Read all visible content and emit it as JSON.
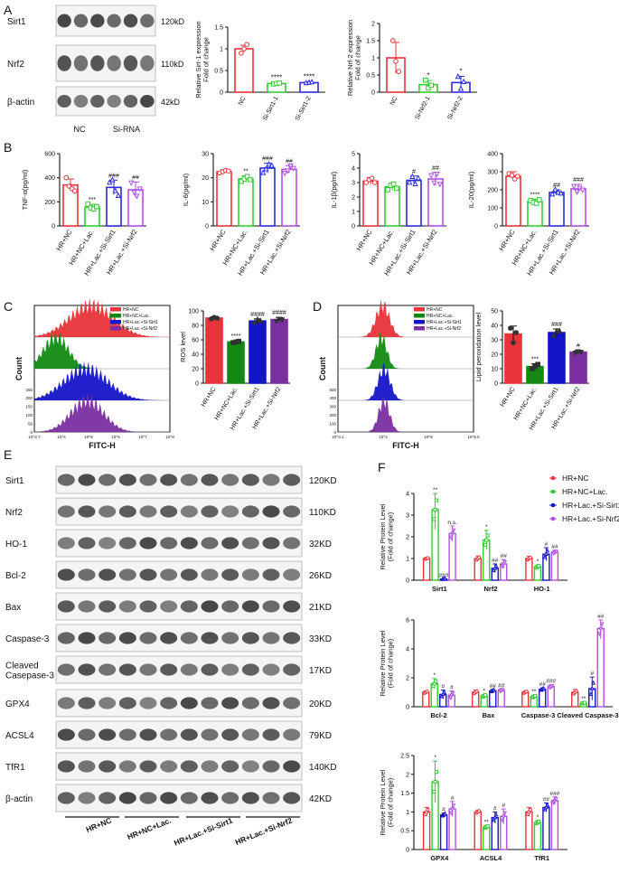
{
  "panel_letters": [
    "A",
    "B",
    "C",
    "D",
    "E",
    "F"
  ],
  "colors": {
    "red": "#e8333a",
    "green": "#33cc33",
    "blue": "#2b2bd9",
    "purple": "#b04fe0",
    "darkgreen": "#128a12",
    "darkblue": "#1515c8",
    "darkpurple": "#7a2ea0"
  },
  "panel_a": {
    "blots": [
      {
        "label": "Sirt1",
        "kd": "120kD"
      },
      {
        "label": "Nrf2",
        "kd": "110kD"
      },
      {
        "label": "β-actin",
        "kd": "42kD"
      }
    ],
    "groups": [
      "NC",
      "Si-RNA"
    ]
  },
  "panel_e": {
    "blots": [
      {
        "label": "Sirt1",
        "kd": "120KD"
      },
      {
        "label": "Nrf2",
        "kd": "110KD"
      },
      {
        "label": "HO-1",
        "kd": "32KD"
      },
      {
        "label": "Bcl-2",
        "kd": "26KD"
      },
      {
        "label": "Bax",
        "kd": "21KD"
      },
      {
        "label": "Caspase-3",
        "kd": "33KD"
      },
      {
        "label": "Cleaved\nCasepase-3",
        "kd": "17KD"
      },
      {
        "label": "GPX4",
        "kd": "20KD"
      },
      {
        "label": "ACSL4",
        "kd": "79KD"
      },
      {
        "label": "TfR1",
        "kd": "140KD"
      },
      {
        "label": "β-actin",
        "kd": "42KD"
      }
    ],
    "groups": [
      "HR+NC",
      "HR+NC+Lac.",
      "HR+Lac.+Si-Sirt1",
      "HR+Lac.+Si-Nrf2"
    ]
  },
  "flow_c": {
    "legend": [
      "HR+NC",
      "HR+NC+Lac.",
      "HR+Lac.+Si-Sirt1",
      "HR+Lac.+Si-Nrf2"
    ],
    "xlabel": "FITC-H",
    "ylabel": "Count",
    "xticks": [
      "10^2.7",
      "10^4",
      "10^5",
      "10^6",
      "10^7",
      "10^8"
    ],
    "yticks": [
      "0",
      "50",
      "100",
      "150",
      "200",
      "250"
    ]
  },
  "flow_d": {
    "legend": [
      "HR+NC",
      "HR+NC+Lac.",
      "HR+Lac.+Si-Sirt1",
      "HR+Lac.+Si-Nrf2"
    ],
    "xlabel": "FITC-H",
    "ylabel": "Count",
    "xticks": [
      "10^3.1",
      "10^4",
      "10^5",
      "10^5.6"
    ],
    "yticks": [
      "0",
      "100",
      "200",
      "300",
      "400",
      "500"
    ]
  },
  "chart_data": [
    {
      "id": "A1",
      "type": "bar",
      "title": "",
      "ylabel": "Relative Sirt-1 expression\nFold of change",
      "ylim": [
        0,
        1.5
      ],
      "yticks": [
        0.0,
        0.5,
        1.0,
        1.5
      ],
      "categories": [
        "NC",
        "Si-Sirt1-1",
        "Si-Sirt1-2"
      ],
      "values": [
        1.0,
        0.2,
        0.22
      ],
      "errors": [
        0.08,
        0.02,
        0.02
      ],
      "points": [
        [
          0.9,
          1.0,
          1.1
        ],
        [
          0.19,
          0.2,
          0.21
        ],
        [
          0.21,
          0.22,
          0.23
        ]
      ],
      "colors": [
        "red",
        "green",
        "blue"
      ],
      "markers": [
        "circle",
        "square",
        "triangle"
      ],
      "sig": [
        "",
        "****",
        "****"
      ]
    },
    {
      "id": "A2",
      "type": "bar",
      "title": "",
      "ylabel": "Relative Nrf-2 expression\nFold of change",
      "ylim": [
        0,
        2.0
      ],
      "yticks": [
        0.0,
        0.5,
        1.0,
        1.5,
        2.0
      ],
      "categories": [
        "NC",
        "Si-Nrf2-1",
        "Si-Nrf2-2"
      ],
      "values": [
        1.0,
        0.22,
        0.28
      ],
      "errors": [
        0.45,
        0.12,
        0.18
      ],
      "points": [
        [
          1.5,
          0.9,
          0.6
        ],
        [
          0.35,
          0.12,
          0.2
        ],
        [
          0.45,
          0.1,
          0.3
        ]
      ],
      "colors": [
        "red",
        "green",
        "blue"
      ],
      "markers": [
        "circle",
        "square",
        "triangle"
      ],
      "sig": [
        "",
        "*",
        "*"
      ]
    },
    {
      "id": "B1",
      "type": "bar",
      "ylabel": "TNF-α(pg/ml)",
      "ylim": [
        0,
        600
      ],
      "yticks": [
        0,
        200,
        400,
        600
      ],
      "categories": [
        "HR+NC",
        "HR+NC+Lac.",
        "HR+Lac.+Si-Sirt1",
        "HR+Lac.+Si-Nrf2"
      ],
      "values": [
        340,
        155,
        320,
        300
      ],
      "errors": [
        50,
        25,
        60,
        65
      ],
      "points": [
        [
          400,
          330,
          310,
          290
        ],
        [
          180,
          150,
          140,
          160
        ],
        [
          360,
          380,
          290,
          250
        ],
        [
          360,
          280,
          250,
          310
        ]
      ],
      "colors": [
        "red",
        "green",
        "blue",
        "purple"
      ],
      "markers": [
        "circle",
        "square",
        "triangle",
        "invtriangle"
      ],
      "sig": [
        "",
        "***",
        "###",
        "##"
      ]
    },
    {
      "id": "B2",
      "type": "bar",
      "ylabel": "IL-6(pg/ml)",
      "ylim": [
        0,
        30
      ],
      "yticks": [
        0,
        10,
        20,
        30
      ],
      "categories": [
        "HR+NC",
        "HR+NC+Lac.",
        "HR+Lac.+Si-Sirt1",
        "HR+Lac.+Si-Nrf2"
      ],
      "values": [
        22.5,
        19.5,
        24,
        23.5
      ],
      "errors": [
        0.8,
        1.3,
        2.0,
        1.5
      ],
      "points": [
        [
          22,
          22.5,
          23,
          22.8
        ],
        [
          18.5,
          19.5,
          20.5,
          19.2
        ],
        [
          22,
          23.5,
          25.5,
          25
        ],
        [
          22,
          23,
          25,
          24
        ]
      ],
      "colors": [
        "red",
        "green",
        "blue",
        "purple"
      ],
      "markers": [
        "circle",
        "square",
        "triangle",
        "invtriangle"
      ],
      "sig": [
        "",
        "**",
        "###",
        "##"
      ]
    },
    {
      "id": "B3",
      "type": "bar",
      "ylabel": "IL-1β(pg/ml)",
      "ylim": [
        0,
        5
      ],
      "yticks": [
        0,
        1,
        2,
        3,
        4,
        5
      ],
      "categories": [
        "HR+NC",
        "HR+NC+Lac.",
        "HR+Lac.+Si-Sirt1",
        "HR+Lac.+Si-Nrf2"
      ],
      "values": [
        3.1,
        2.7,
        3.15,
        3.25
      ],
      "errors": [
        0.25,
        0.25,
        0.3,
        0.45
      ],
      "points": [
        [
          3.0,
          3.2,
          3.3,
          3.0
        ],
        [
          2.5,
          2.8,
          2.9,
          2.6
        ],
        [
          3.0,
          3.4,
          2.9,
          3.3
        ],
        [
          3.5,
          3.0,
          3.6,
          2.9
        ]
      ],
      "colors": [
        "red",
        "green",
        "blue",
        "purple"
      ],
      "markers": [
        "circle",
        "square",
        "triangle",
        "invtriangle"
      ],
      "sig": [
        "",
        "",
        "#",
        "##"
      ]
    },
    {
      "id": "B4",
      "type": "bar",
      "ylabel": "IL-20(pg/ml)",
      "ylim": [
        0,
        400
      ],
      "yticks": [
        0,
        100,
        200,
        300,
        400
      ],
      "categories": [
        "HR+NC",
        "HR+NC+Lac.",
        "HR+Lac.+Si-Sirt1",
        "HR+Lac.+Si-Nrf2"
      ],
      "values": [
        275,
        135,
        185,
        205
      ],
      "errors": [
        25,
        12,
        15,
        25
      ],
      "points": [
        [
          290,
          280,
          260,
          275
        ],
        [
          140,
          130,
          125,
          145
        ],
        [
          175,
          200,
          185,
          180
        ],
        [
          220,
          190,
          210,
          200
        ]
      ],
      "colors": [
        "red",
        "green",
        "blue",
        "purple"
      ],
      "markers": [
        "circle",
        "square",
        "triangle",
        "invtriangle"
      ],
      "sig": [
        "",
        "****",
        "##",
        "###"
      ]
    },
    {
      "id": "C",
      "type": "bar",
      "ylabel": "ROS level",
      "ylim": [
        0,
        100
      ],
      "yticks": [
        0,
        20,
        40,
        60,
        80,
        100
      ],
      "categories": [
        "HR+NC",
        "HR+NC+Lac.",
        "HR+Lac.+Si-Sirt1",
        "HR+Lac.+Si-Nrf2"
      ],
      "values": [
        90,
        57,
        86,
        88
      ],
      "errors": [
        2,
        1.5,
        3,
        3
      ],
      "points": [
        [
          89,
          91,
          90
        ],
        [
          56,
          57,
          58
        ],
        [
          84,
          88,
          86
        ],
        [
          86,
          89,
          88
        ]
      ],
      "colors": [
        "red",
        "darkgreen",
        "darkblue",
        "darkpurple"
      ],
      "filled": true,
      "markers": [
        "circle",
        "square",
        "triangle",
        "invtriangle"
      ],
      "sig": [
        "",
        "****",
        "####",
        "####"
      ]
    },
    {
      "id": "D",
      "type": "bar",
      "ylabel": "Lipid peroxidation level",
      "ylim": [
        0,
        50
      ],
      "yticks": [
        0,
        10,
        20,
        30,
        40,
        50
      ],
      "categories": [
        "HR+NC",
        "HR+NC+Lac.",
        "HR+Lac.+Si-Sirt1",
        "HR+Lac.+Si-Nrf2"
      ],
      "values": [
        34,
        11.5,
        35,
        21.5
      ],
      "errors": [
        5.5,
        2,
        2.5,
        1.2
      ],
      "points": [
        [
          38,
          28,
          35
        ],
        [
          10,
          11.5,
          13
        ],
        [
          33,
          36,
          36
        ],
        [
          21,
          22,
          21.5
        ]
      ],
      "colors": [
        "red",
        "darkgreen",
        "darkblue",
        "darkpurple"
      ],
      "filled": true,
      "markers": [
        "circle",
        "square",
        "triangle",
        "invtriangle"
      ],
      "sig": [
        "",
        "***",
        "###",
        "#"
      ]
    },
    {
      "id": "F1",
      "type": "grouped-bar",
      "ylabel": "Relative Protein Level\n(Fold of change)",
      "ylim": [
        0,
        4
      ],
      "yticks": [
        0,
        1,
        2,
        3,
        4
      ],
      "categories": [
        "Sirt1",
        "Nrf2",
        "HO-1"
      ],
      "series": [
        {
          "name": "HR+NC",
          "values": [
            1.0,
            1.0,
            1.0
          ]
        },
        {
          "name": "HR+NC+Lac.",
          "values": [
            3.25,
            1.85,
            0.62
          ]
        },
        {
          "name": "HR+Lac.+Si-Sirt1",
          "values": [
            0.05,
            0.55,
            1.2
          ]
        },
        {
          "name": "HR+Lac.+Si-Nrf2",
          "values": [
            2.15,
            0.75,
            1.3
          ]
        }
      ],
      "errors": [
        [
          0.05,
          0.12,
          0.1
        ],
        [
          0.9,
          0.45,
          0.08
        ],
        [
          0.02,
          0.2,
          0.3
        ],
        [
          0.35,
          0.2,
          0.08
        ]
      ],
      "sig": [
        [
          "",
          "**",
          "###",
          "n.s."
        ],
        [
          "",
          "*",
          "##",
          "##"
        ],
        [
          "",
          "*",
          "#",
          "##"
        ]
      ]
    },
    {
      "id": "F2",
      "type": "grouped-bar",
      "ylabel": "Relative Protein Level\n(Fold of change)",
      "ylim": [
        0,
        6
      ],
      "yticks": [
        0,
        2,
        4,
        6
      ],
      "categories": [
        "Bcl-2",
        "Bax",
        "Caspase-3",
        "Cleaved Caspase-3"
      ],
      "series": [
        {
          "name": "HR+NC",
          "values": [
            1.0,
            1.0,
            1.0,
            1.0
          ]
        },
        {
          "name": "HR+NC+Lac.",
          "values": [
            1.6,
            0.75,
            0.7,
            0.25
          ]
        },
        {
          "name": "HR+Lac.+Si-Sirt1",
          "values": [
            0.85,
            1.1,
            1.2,
            1.25
          ]
        },
        {
          "name": "HR+Lac.+Si-Nrf2",
          "values": [
            0.8,
            1.15,
            1.4,
            5.4
          ]
        }
      ],
      "errors": [
        [
          0.1,
          0.15,
          0.1,
          0.2
        ],
        [
          0.35,
          0.1,
          0.1,
          0.05
        ],
        [
          0.3,
          0.1,
          0.1,
          0.8
        ],
        [
          0.3,
          0.08,
          0.12,
          0.7
        ]
      ],
      "sig": [
        [
          "",
          "*",
          "#",
          "#"
        ],
        [
          "",
          "*",
          "##",
          "##"
        ],
        [
          "",
          "**",
          "##",
          "###"
        ],
        [
          "",
          "**",
          "#",
          "##"
        ]
      ]
    },
    {
      "id": "F3",
      "type": "grouped-bar",
      "ylabel": "Relative Protein Level\n(Fold of change)",
      "ylim": [
        0,
        2.5
      ],
      "yticks": [
        0.0,
        0.5,
        1.0,
        1.5,
        2.0,
        2.5
      ],
      "categories": [
        "GPX4",
        "ACSL4",
        "TfR1"
      ],
      "series": [
        {
          "name": "HR+NC",
          "values": [
            1.0,
            1.0,
            1.0
          ]
        },
        {
          "name": "HR+NC+Lac.",
          "values": [
            1.8,
            0.6,
            0.72
          ]
        },
        {
          "name": "HR+Lac.+Si-Sirt1",
          "values": [
            0.92,
            0.85,
            1.12
          ]
        },
        {
          "name": "HR+Lac.+Si-Nrf2",
          "values": [
            1.08,
            0.88,
            1.3
          ]
        }
      ],
      "errors": [
        [
          0.12,
          0.05,
          0.12
        ],
        [
          0.55,
          0.04,
          0.05
        ],
        [
          0.05,
          0.15,
          0.12
        ],
        [
          0.2,
          0.2,
          0.1
        ]
      ],
      "sig": [
        [
          "",
          "*",
          "#",
          "#"
        ],
        [
          "",
          "**",
          "#",
          "#"
        ],
        [
          "",
          "*",
          "##",
          "###"
        ]
      ]
    }
  ]
}
